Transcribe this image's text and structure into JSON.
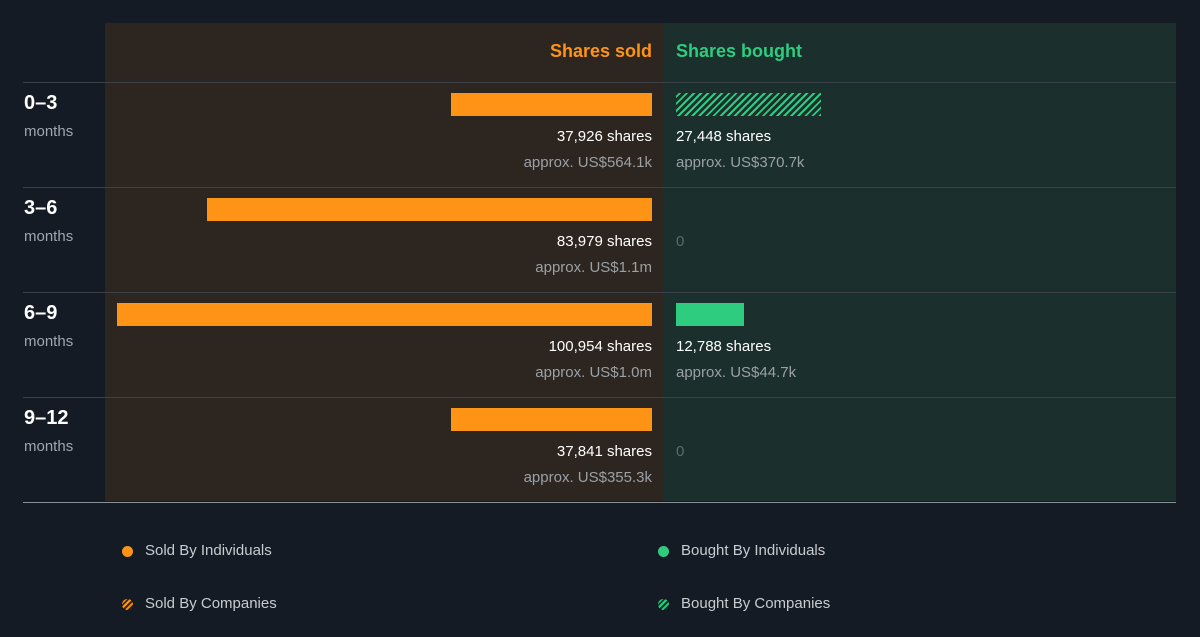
{
  "chart_data": {
    "type": "bar",
    "orientation": "diverging-horizontal",
    "headers": {
      "sold": "Shares sold",
      "bought": "Shares bought"
    },
    "categories": [
      {
        "label": "0–3",
        "unit": "months"
      },
      {
        "label": "3–6",
        "unit": "months"
      },
      {
        "label": "6–9",
        "unit": "months"
      },
      {
        "label": "9–12",
        "unit": "months"
      }
    ],
    "scale_max": 100954,
    "sold": [
      {
        "value": 37926,
        "shares_text": "37,926 shares",
        "approx_text": "approx. US$564.1k",
        "by": "individuals"
      },
      {
        "value": 83979,
        "shares_text": "83,979 shares",
        "approx_text": "approx. US$1.1m",
        "by": "individuals"
      },
      {
        "value": 100954,
        "shares_text": "100,954 shares",
        "approx_text": "approx. US$1.0m",
        "by": "individuals"
      },
      {
        "value": 37841,
        "shares_text": "37,841 shares",
        "approx_text": "approx. US$355.3k",
        "by": "individuals"
      }
    ],
    "bought": [
      {
        "value": 27448,
        "shares_text": "27,448 shares",
        "approx_text": "approx. US$370.7k",
        "by": "companies"
      },
      {
        "value": 0,
        "zero_text": "0"
      },
      {
        "value": 12788,
        "shares_text": "12,788 shares",
        "approx_text": "approx. US$44.7k",
        "by": "individuals"
      },
      {
        "value": 0,
        "zero_text": "0"
      }
    ],
    "legend": [
      {
        "label": "Sold By Individuals",
        "style": "dot-sold"
      },
      {
        "label": "Bought By Individuals",
        "style": "dot-bought"
      },
      {
        "label": "Sold By Companies",
        "style": "dot-hatch-sold"
      },
      {
        "label": "Bought By Companies",
        "style": "dot-hatch-bought"
      }
    ],
    "colors": {
      "sold": "#ff9316",
      "bought": "#2ecc7f",
      "background": "#151b24",
      "sold_panel": "#2d2620",
      "bought_panel": "#1b2f2c"
    }
  }
}
